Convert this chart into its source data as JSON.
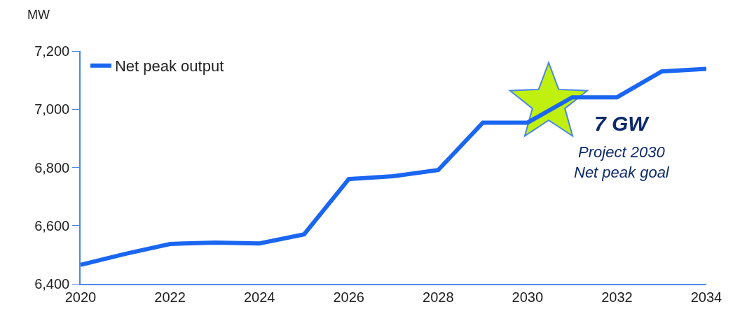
{
  "chart_data": {
    "type": "line",
    "ylabel": "MW",
    "x": [
      2020,
      2021,
      2022,
      2023,
      2024,
      2025,
      2026,
      2027,
      2028,
      2029,
      2030,
      2031,
      2032,
      2033,
      2034
    ],
    "series": [
      {
        "name": "Net peak output",
        "color": "#1a66f0",
        "values": [
          6465,
          6503,
          6537,
          6542,
          6539,
          6570,
          6760,
          6770,
          6791,
          6954,
          6954,
          7041,
          7041,
          7130,
          7139
        ]
      }
    ],
    "xlim": [
      2020,
      2034
    ],
    "xticks": [
      2020,
      2022,
      2024,
      2026,
      2028,
      2030,
      2032,
      2034
    ],
    "ylim": [
      6400,
      7200
    ],
    "yticks": [
      {
        "value": 6400,
        "label": "6,400"
      },
      {
        "value": 6600,
        "label": "6,600"
      },
      {
        "value": 6800,
        "label": "6,800"
      },
      {
        "value": 7000,
        "label": "7,000"
      },
      {
        "value": 7200,
        "label": "7,200"
      }
    ],
    "annotations": [
      "7 GW",
      "Project 2030\nNet peak goal"
    ],
    "grid": false,
    "legend": "top left",
    "marker": "none",
    "line_style": "solid"
  }
}
